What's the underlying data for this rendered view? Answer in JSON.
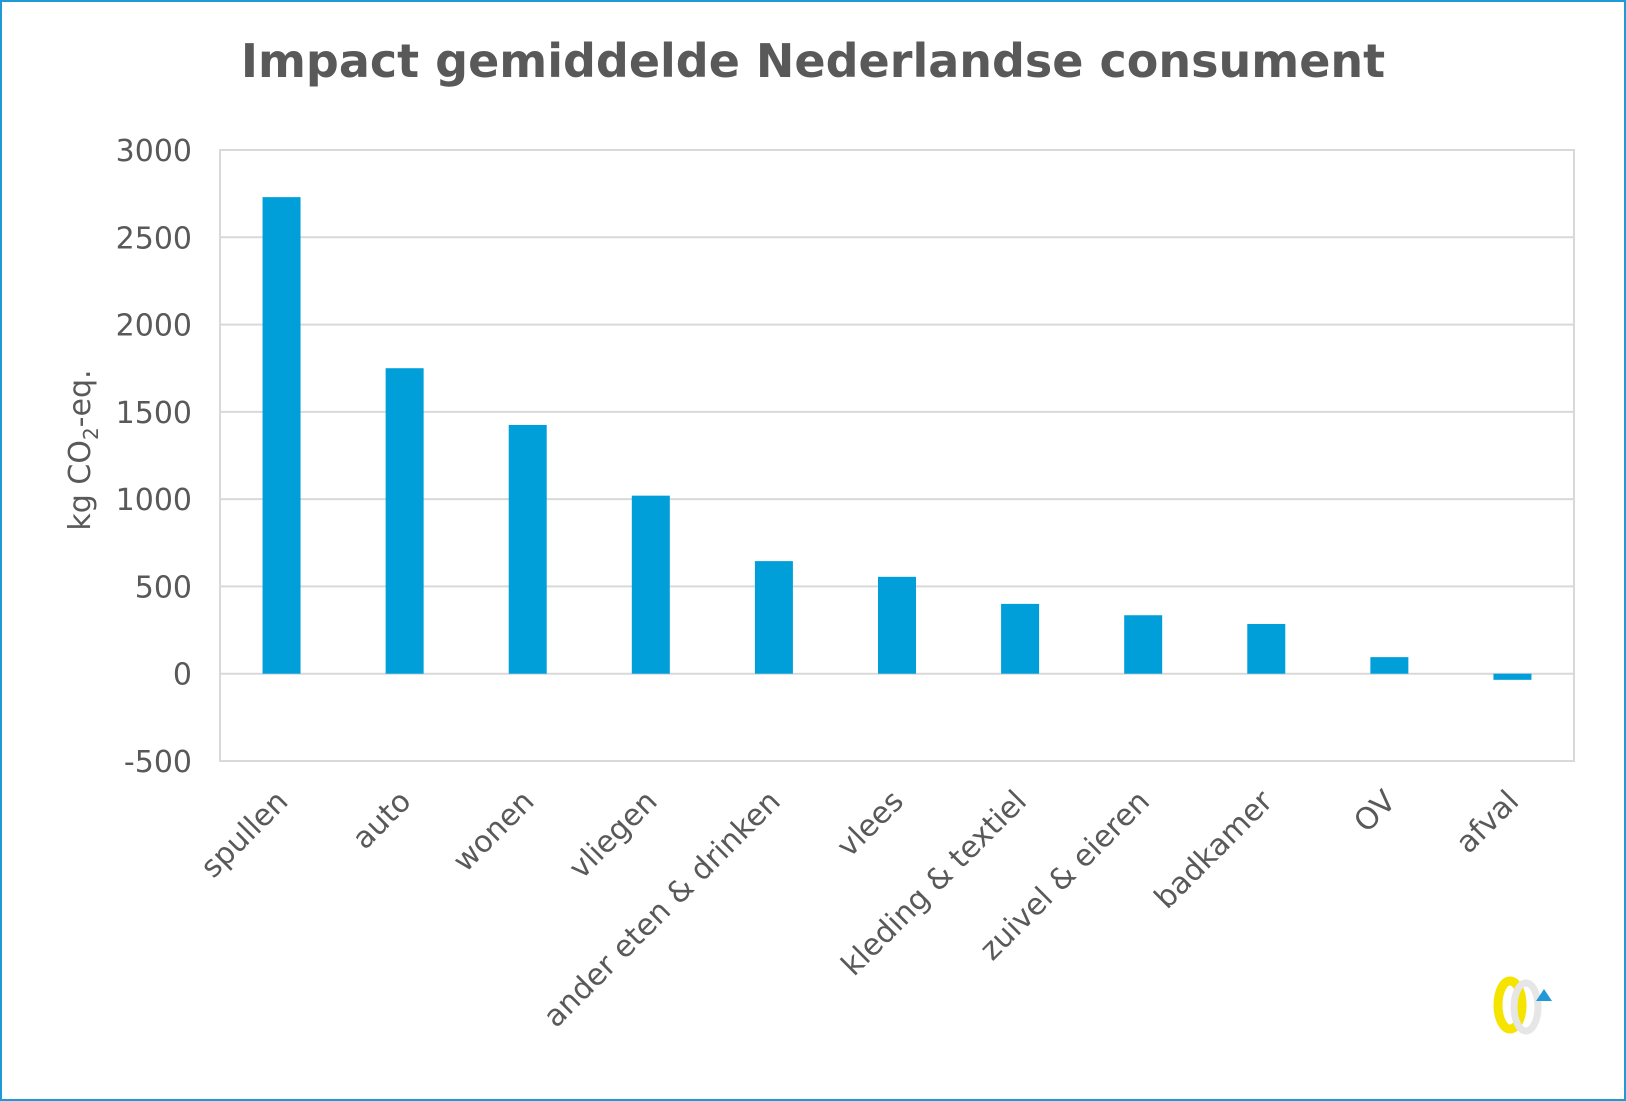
{
  "chart_data": {
    "type": "bar",
    "title": "Impact gemiddelde Nederlandse consument",
    "ylabel": "kg CO2-eq.",
    "ylabel_parts": {
      "pre": "kg CO",
      "sub": "2",
      "post": "-eq."
    },
    "xlabel": "",
    "categories": [
      "spullen",
      "auto",
      "wonen",
      "vliegen",
      "ander eten & drinken",
      "vlees",
      "kleding & textiel",
      "zuivel & eieren",
      "badkamer",
      "OV",
      "afval"
    ],
    "values": [
      2730,
      1750,
      1425,
      1020,
      645,
      555,
      400,
      335,
      285,
      95,
      -35
    ],
    "ylim": [
      -500,
      3000
    ],
    "yticks": [
      -500,
      0,
      500,
      1000,
      1500,
      2000,
      2500,
      3000
    ],
    "grid": true,
    "legend": "none",
    "colors": {
      "bar": "#009fd9",
      "grid": "#d9d9d9",
      "text": "#595959",
      "frame": "#1f9ad6"
    }
  },
  "logo": {
    "name": "ce-delft-logo"
  }
}
